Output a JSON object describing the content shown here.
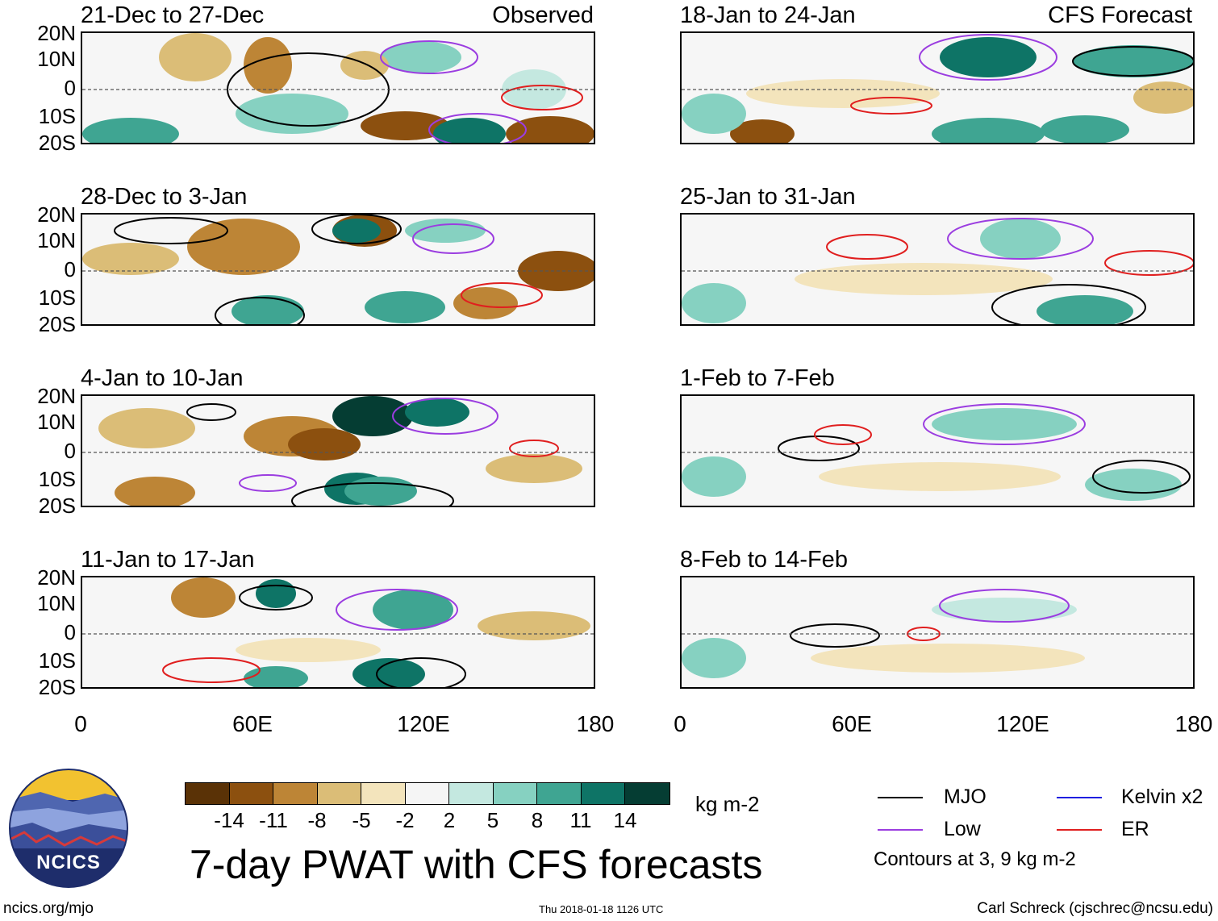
{
  "header": {
    "observed_label": "Observed",
    "forecast_label": "CFS Forecast"
  },
  "panels_left": [
    {
      "title": "21-Dec to 27-Dec"
    },
    {
      "title": "28-Dec to 3-Jan"
    },
    {
      "title": "4-Jan to 10-Jan"
    },
    {
      "title": "11-Jan to 17-Jan"
    }
  ],
  "panels_right": [
    {
      "title": "18-Jan to 24-Jan"
    },
    {
      "title": "25-Jan to 31-Jan"
    },
    {
      "title": "1-Feb to 7-Feb"
    },
    {
      "title": "8-Feb to 14-Feb"
    }
  ],
  "axes": {
    "lat_labels": [
      "20N",
      "10N",
      "0",
      "10S",
      "20S"
    ],
    "lon_labels": [
      "0",
      "60E",
      "120E",
      "180"
    ]
  },
  "colorbar": {
    "colors": [
      "#5a3206",
      "#8c500f",
      "#bd8536",
      "#dbbd77",
      "#f3e4bc",
      "#f5f5f5",
      "#c4e8e0",
      "#86d1c1",
      "#3fa592",
      "#0e7466",
      "#053d33"
    ],
    "labels": [
      "-14",
      "-11",
      "-8",
      "-5",
      "-2",
      "2",
      "5",
      "8",
      "11",
      "14"
    ],
    "units": "kg m-2"
  },
  "title": "7-day PWAT with CFS forecasts",
  "legend": {
    "items": [
      {
        "name": "MJO",
        "color": "#000000"
      },
      {
        "name": "Kelvin x2",
        "color": "#1f1fe0"
      },
      {
        "name": "Low",
        "color": "#9b3de0"
      },
      {
        "name": "ER",
        "color": "#e01f1f"
      }
    ],
    "note": "Contours at 3, 9 kg m-2"
  },
  "footer": {
    "url": "ncics.org/mjo",
    "timestamp": "Thu 2018-01-18 1126 UTC",
    "author": "Carl Schreck (cjschrec@ncsu.edu)"
  },
  "logo": {
    "text": "NCICS"
  }
}
